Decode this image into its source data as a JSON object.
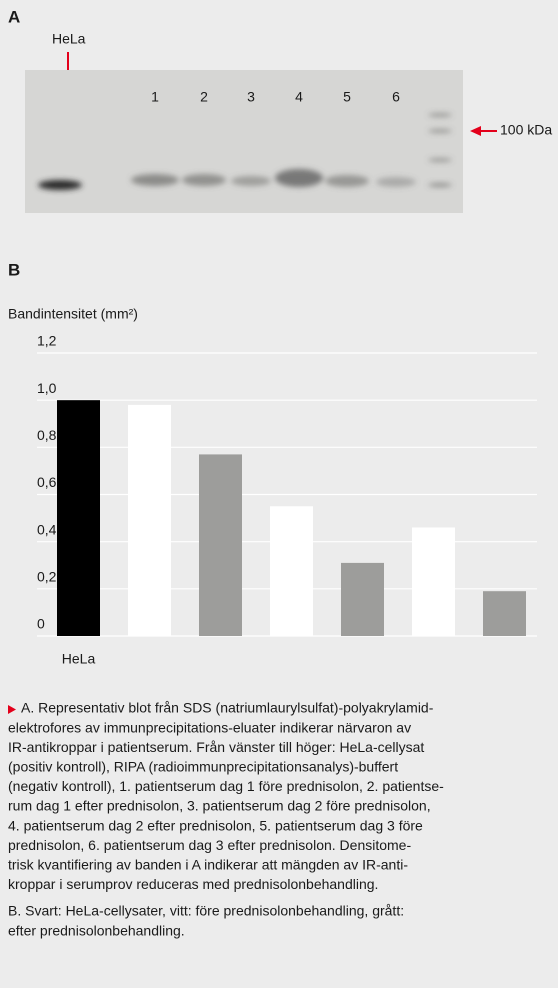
{
  "panel_a": {
    "label": "A",
    "hela_label": "HeLa",
    "lane_labels": [
      "1",
      "2",
      "3",
      "4",
      "5",
      "6"
    ],
    "marker_label": "100 kDa"
  },
  "chart_data": {
    "type": "bar",
    "label": "B",
    "y_label": "Bandintensitet (mm²)",
    "categories": [
      "HeLa",
      null,
      null,
      null,
      null,
      null,
      null
    ],
    "values": [
      1.0,
      0.98,
      0.77,
      0.55,
      0.31,
      0.46,
      0.19
    ],
    "colors": [
      "#000000",
      "#ffffff",
      "#9d9d9b",
      "#ffffff",
      "#9d9d9b",
      "#ffffff",
      "#9d9d9b"
    ],
    "ylim": [
      0,
      1.2
    ],
    "yticks": [
      0,
      {
        "value": 0.2,
        "label": "0,2"
      },
      {
        "value": 0.4,
        "label": "0,4"
      },
      {
        "value": 0.6,
        "label": "0,6"
      },
      {
        "value": 0.8,
        "label": "0,8"
      },
      {
        "value": 1.0,
        "label": "1,0"
      },
      {
        "value": 1.2,
        "label": "1,2"
      }
    ],
    "grid": true
  },
  "caption": {
    "a_lines": [
      "A. Representativ blot från SDS (natriumlaurylsulfat)-polyakrylamid-",
      "elektrofores av immunprecipitations-eluater indikerar närvaron av",
      "IR-antikroppar i patientserum. Från vänster till höger: HeLa-cellysat",
      "(positiv kontroll), RIPA (radioimmunprecipitationsanalys)-buffert",
      "(negativ kontroll), 1. patientserum dag 1 före prednisolon, 2. patientse-",
      "rum dag 1 efter prednisolon, 3. patientserum dag 2 före prednisolon,",
      "4. patientserum dag 2 efter prednisolon, 5. patientserum dag 3 före",
      "prednisolon, 6. patientserum dag 3 efter prednisolon. Densitome-",
      "trisk kvantifiering av banden i A indikerar att mängden av IR-anti-",
      "kroppar i serumprov reduceras med prednisolonbehandling."
    ],
    "b_lines": [
      "B. Svart: HeLa-cellysater, vitt: före prednisolonbehandling, grått:",
      "efter prednisolonbehandling."
    ]
  }
}
